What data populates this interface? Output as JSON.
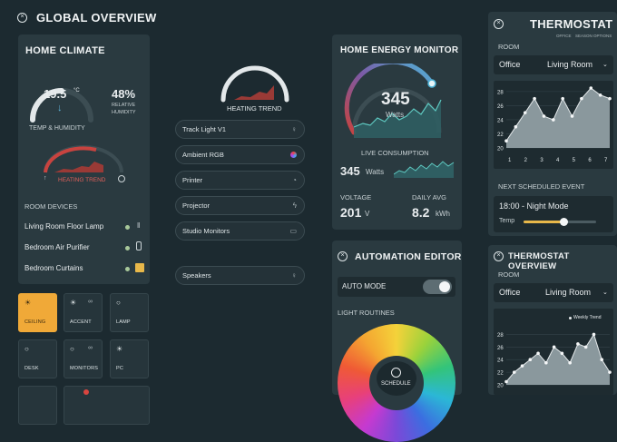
{
  "header": {
    "title": "GLOBAL OVERVIEW"
  },
  "climate": {
    "title": "HOME CLIMATE",
    "temp": "19.5",
    "temp_unit": "°C",
    "humidity": "48%",
    "humidity_label1": "RELATIVE",
    "humidity_label2": "HUMIDITY",
    "gauge_label": "TEMP & HUMIDITY",
    "heating_label": "HEATING TREND",
    "devices_title": "ROOM DEVICES",
    "devices": [
      "Living Room Floor Lamp",
      "Bedroom Air Purifier",
      "Bedroom Curtains"
    ]
  },
  "tiles": [
    {
      "label": "CEILING",
      "active": true
    },
    {
      "label": "ACCENT"
    },
    {
      "label": "LAMP"
    },
    {
      "label": "DESK"
    },
    {
      "label": "MONITORS"
    },
    {
      "label": "PC"
    }
  ],
  "trend": {
    "label": "HEATING TREND"
  },
  "devices_list": [
    "Track Light V1",
    "Ambient RGB",
    "Printer",
    "Projector",
    "Studio Monitors",
    "Speakers"
  ],
  "energy": {
    "title": "HOME ENERGY MONITOR",
    "value": "345",
    "unit": "Watts",
    "live_label": "LIVE CONSUMPTION",
    "live_value": "345",
    "live_unit": "Watts",
    "voltage_label": "VOLTAGE",
    "voltage": "201",
    "voltage_unit": "V",
    "avg_label": "DAILY AVG",
    "avg": "8.2",
    "avg_unit": "kWh"
  },
  "automation": {
    "title": "AUTOMATION EDITOR",
    "auto_mode": "AUTO MODE",
    "auto_on": true,
    "routines": "LIGHT ROUTINES",
    "schedule": "SCHEDULE"
  },
  "thermostat": {
    "title": "THERMOSTAT",
    "sub1": "OFFICE",
    "sub2": "SEASON OPTIONS",
    "room_label": "ROOM",
    "room1": "Office",
    "room2": "Living Room",
    "y_ticks": [
      "28",
      "26",
      "24",
      "22",
      "20"
    ],
    "x_ticks": [
      "1",
      "2",
      "3",
      "4",
      "5",
      "6",
      "7"
    ],
    "values": [
      21,
      23,
      25,
      27,
      24.5,
      24,
      27,
      24.5,
      27,
      28.5,
      27.5,
      27
    ],
    "next_label": "NEXT SCHEDULED EVENT",
    "event": "18:00 - Night Mode",
    "temp_label": "Temp",
    "temp_level": 0.55
  },
  "thermo_overview": {
    "title": "THERMOSTAT OVERVIEW",
    "room_label": "ROOM",
    "room1": "Office",
    "room2": "Living Room",
    "legend": "Weekly Trend",
    "y_ticks": [
      "28",
      "26",
      "24",
      "22",
      "20"
    ],
    "values": [
      20.5,
      22,
      23,
      24,
      25,
      23.5,
      26,
      25,
      23.5,
      26.5,
      26,
      28,
      24,
      22
    ]
  }
}
